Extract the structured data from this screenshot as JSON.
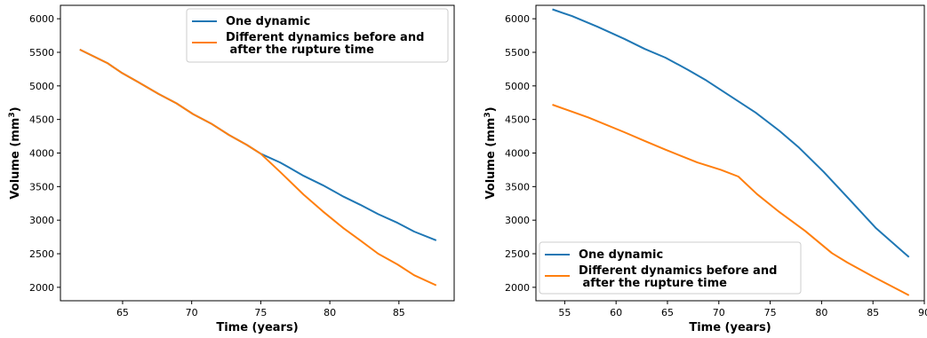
{
  "colors": {
    "blue": "#1f77b4",
    "orange": "#ff7f0e"
  },
  "chart_data": [
    {
      "type": "line",
      "title": "",
      "xlabel": "Time (years)",
      "ylabel": "Volume (mm",
      "ylabel_sup": "3",
      "ylabel_close": ")",
      "xlim": [
        60.5,
        89
      ],
      "ylim": [
        1800,
        6200
      ],
      "xticks": [
        65,
        70,
        75,
        80,
        85
      ],
      "yticks": [
        2000,
        2500,
        3000,
        3500,
        4000,
        4500,
        5000,
        5500,
        6000
      ],
      "legend_position": "top-right",
      "series": [
        {
          "name": "One dynamic",
          "color": "#1f77b4",
          "x": [
            61.9,
            63.9,
            64.9,
            66.1,
            67.6,
            68.9,
            70.1,
            71.4,
            72.7,
            74.0,
            75.0,
            76.4,
            77.0,
            78.1,
            79.5,
            81.0,
            82.2,
            83.5,
            84.9,
            86.1,
            87.7
          ],
          "y": [
            5540,
            5340,
            5200,
            5060,
            4880,
            4740,
            4580,
            4440,
            4270,
            4120,
            3990,
            3860,
            3790,
            3660,
            3520,
            3350,
            3230,
            3090,
            2960,
            2830,
            2700
          ]
        },
        {
          "name": "Different dynamics before and\n after the rupture time",
          "color": "#ff7f0e",
          "x": [
            61.9,
            63.9,
            64.9,
            66.1,
            67.6,
            68.9,
            70.1,
            71.4,
            72.7,
            74.0,
            75.0,
            76.4,
            78.1,
            79.5,
            81.0,
            82.2,
            83.5,
            84.9,
            86.1,
            87.7
          ],
          "y": [
            5540,
            5340,
            5200,
            5060,
            4880,
            4740,
            4580,
            4440,
            4270,
            4120,
            3990,
            3720,
            3380,
            3130,
            2880,
            2700,
            2500,
            2340,
            2180,
            2030
          ]
        }
      ]
    },
    {
      "type": "line",
      "title": "",
      "xlabel": "Time (years)",
      "ylabel": "Volume (mm",
      "ylabel_sup": "3",
      "ylabel_close": ")",
      "xlim": [
        52.2,
        90
      ],
      "ylim": [
        1800,
        6200
      ],
      "xticks": [
        55,
        60,
        65,
        70,
        75,
        80,
        85,
        90
      ],
      "yticks": [
        2000,
        2500,
        3000,
        3500,
        4000,
        4500,
        5000,
        5500,
        6000
      ],
      "legend_position": "bottom-left",
      "series": [
        {
          "name": "One dynamic",
          "color": "#1f77b4",
          "x": [
            53.8,
            55.7,
            58.2,
            60.8,
            62.8,
            64.8,
            67.0,
            68.8,
            71.1,
            73.6,
            75.9,
            77.8,
            80.2,
            82.7,
            85.3,
            88.5
          ],
          "y": [
            6140,
            6040,
            5880,
            5700,
            5550,
            5420,
            5240,
            5080,
            4850,
            4600,
            4330,
            4080,
            3720,
            3310,
            2880,
            2450
          ]
        },
        {
          "name": "Different dynamics before and\n after the rupture time",
          "color": "#ff7f0e",
          "x": [
            53.8,
            57.3,
            60.8,
            62.8,
            64.8,
            67.9,
            70.2,
            71.9,
            73.7,
            75.9,
            78.4,
            81.0,
            82.5,
            85.0,
            88.5
          ],
          "y": [
            4720,
            4530,
            4310,
            4180,
            4050,
            3860,
            3750,
            3650,
            3390,
            3120,
            2840,
            2510,
            2370,
            2160,
            1880
          ]
        }
      ]
    }
  ]
}
